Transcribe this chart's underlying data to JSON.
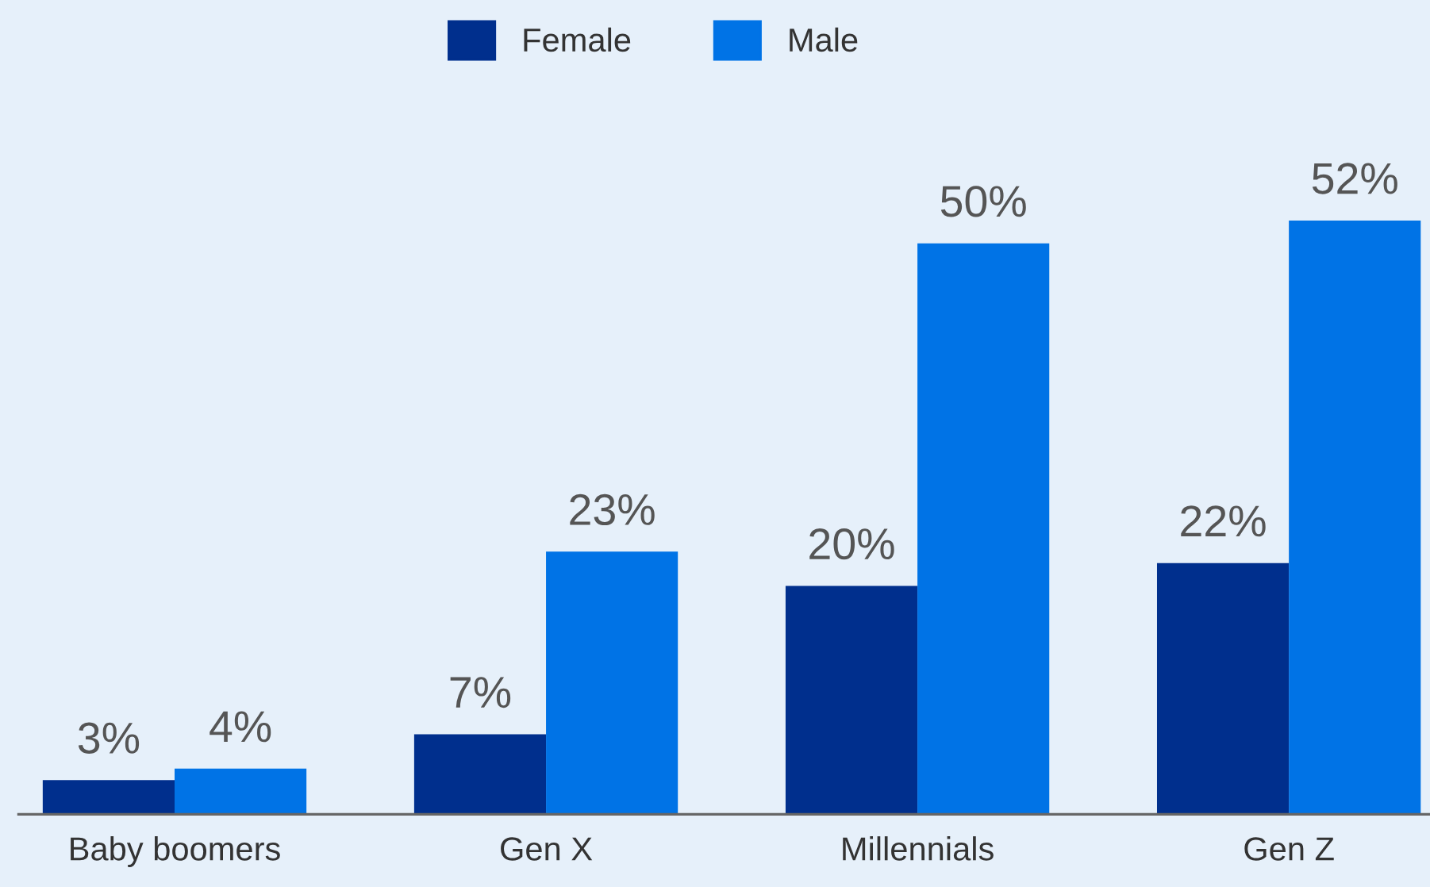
{
  "chart_data": {
    "type": "bar",
    "categories": [
      "Baby boomers",
      "Gen X",
      "Millennials",
      "Gen Z"
    ],
    "series": [
      {
        "name": "Female",
        "color": "#002f8d",
        "values": [
          3,
          7,
          20,
          22
        ],
        "value_labels": [
          "3%",
          "7%",
          "20%",
          "22%"
        ]
      },
      {
        "name": "Male",
        "color": "#0073e6",
        "values": [
          4,
          23,
          50,
          52
        ],
        "value_labels": [
          "4%",
          "23%",
          "50%",
          "52%"
        ]
      }
    ],
    "legend": "top",
    "grid": false
  }
}
